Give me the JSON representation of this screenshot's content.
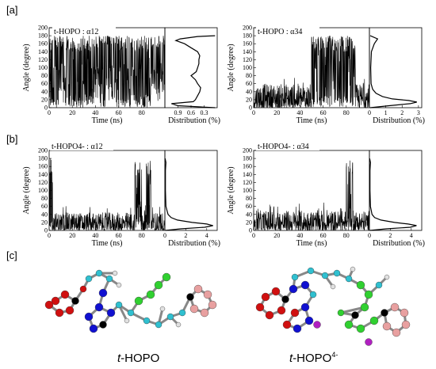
{
  "panel_letters": {
    "a": "[a]",
    "b": "[b]",
    "c": "[c]"
  },
  "axis_text": {
    "ylabel": "Angle (degree)",
    "xlabel_time": "Time (ns)",
    "xlabel_dist": "Distribution (%)"
  },
  "molecule_labels": {
    "left": "t-HOPO",
    "right": "t-HOPO4-"
  },
  "chart_data": [
    {
      "id": "a-alpha12",
      "type": "line",
      "title": "t-HOPO : α12",
      "time_xlim": [
        0,
        100
      ],
      "time_ticks": [
        0,
        20,
        40,
        60,
        80
      ],
      "ylim": [
        0,
        200
      ],
      "yticks": [
        0,
        20,
        40,
        60,
        80,
        100,
        120,
        140,
        160,
        180,
        200
      ],
      "trace_segments": [
        {
          "t0": 0,
          "t1": 8,
          "low": 0,
          "high": 180,
          "pattern": "dense"
        },
        {
          "t0": 8,
          "t1": 14,
          "low": 10,
          "high": 180,
          "pattern": "sparse"
        },
        {
          "t0": 14,
          "t1": 36,
          "low": 0,
          "high": 180,
          "pattern": "dense"
        },
        {
          "t0": 36,
          "t1": 51,
          "low": 0,
          "high": 180,
          "pattern": "sparse"
        },
        {
          "t0": 51,
          "t1": 60,
          "low": 0,
          "high": 180,
          "pattern": "sparse"
        },
        {
          "t0": 60,
          "t1": 67,
          "low": 0,
          "high": 180,
          "pattern": "dense"
        },
        {
          "t0": 67,
          "t1": 74,
          "low": 0,
          "high": 180,
          "pattern": "sparse"
        },
        {
          "t0": 74,
          "t1": 88,
          "low": 0,
          "high": 180,
          "pattern": "dense"
        },
        {
          "t0": 88,
          "t1": 100,
          "low": 10,
          "high": 180,
          "pattern": "sparse"
        }
      ],
      "dist_xlim": [
        1.2,
        0
      ],
      "dist_ticks": [
        0.3,
        0.6,
        0.9
      ],
      "dist_tick_labels": [
        "0.3",
        "0.6",
        "0.9"
      ],
      "distribution": [
        [
          0,
          0.05
        ],
        [
          5,
          0.9
        ],
        [
          10,
          1.05
        ],
        [
          15,
          0.55
        ],
        [
          20,
          0.5
        ],
        [
          30,
          0.45
        ],
        [
          40,
          0.4
        ],
        [
          50,
          0.38
        ],
        [
          60,
          0.45
        ],
        [
          70,
          0.5
        ],
        [
          80,
          0.6
        ],
        [
          90,
          0.48
        ],
        [
          100,
          0.45
        ],
        [
          110,
          0.42
        ],
        [
          120,
          0.42
        ],
        [
          130,
          0.4
        ],
        [
          140,
          0.45
        ],
        [
          150,
          0.6
        ],
        [
          160,
          0.75
        ],
        [
          168,
          0.95
        ],
        [
          172,
          0.85
        ],
        [
          178,
          0.45
        ],
        [
          180,
          0.05
        ]
      ]
    },
    {
      "id": "a-alpha34",
      "type": "line",
      "title": "t-HOPO : α34",
      "time_xlim": [
        0,
        100
      ],
      "time_ticks": [
        0,
        20,
        40,
        60,
        80
      ],
      "ylim": [
        0,
        200
      ],
      "yticks": [
        0,
        20,
        40,
        60,
        80,
        100,
        120,
        140,
        160,
        180,
        200
      ],
      "trace_segments": [
        {
          "t0": 0,
          "t1": 50,
          "low": 0,
          "high": 60,
          "pattern": "noise"
        },
        {
          "t0": 50,
          "t1": 66,
          "low": 0,
          "high": 180,
          "pattern": "dense"
        },
        {
          "t0": 66,
          "t1": 88,
          "low": 0,
          "high": 180,
          "pattern": "dense"
        },
        {
          "t0": 88,
          "t1": 100,
          "low": 0,
          "high": 60,
          "pattern": "noise"
        }
      ],
      "dist_xlim": [
        0,
        3.2
      ],
      "dist_ticks": [
        0,
        1,
        2,
        3
      ],
      "dist_tick_labels": [
        "0",
        "1",
        "2",
        "3"
      ],
      "distribution": [
        [
          0,
          0.05
        ],
        [
          5,
          1.2
        ],
        [
          10,
          2.5
        ],
        [
          14,
          2.9
        ],
        [
          18,
          2.4
        ],
        [
          22,
          1.4
        ],
        [
          28,
          0.8
        ],
        [
          36,
          0.4
        ],
        [
          46,
          0.2
        ],
        [
          60,
          0.1
        ],
        [
          100,
          0.08
        ],
        [
          140,
          0.12
        ],
        [
          160,
          0.3
        ],
        [
          172,
          0.5
        ],
        [
          180,
          0.05
        ]
      ]
    },
    {
      "id": "b-alpha12",
      "type": "line",
      "title": "t-HOPO4- : α12",
      "time_xlim": [
        0,
        100
      ],
      "time_ticks": [
        0,
        20,
        40,
        60,
        80
      ],
      "ylim": [
        0,
        200
      ],
      "yticks": [
        0,
        20,
        40,
        60,
        80,
        100,
        120,
        140,
        160,
        180,
        200
      ],
      "trace_segments": [
        {
          "t0": 0,
          "t1": 3,
          "low": 0,
          "high": 180,
          "pattern": "dense"
        },
        {
          "t0": 3,
          "t1": 74,
          "low": 0,
          "high": 45,
          "pattern": "noise"
        },
        {
          "t0": 74,
          "t1": 80,
          "low": 0,
          "high": 175,
          "pattern": "dense"
        },
        {
          "t0": 80,
          "t1": 84,
          "low": 0,
          "high": 45,
          "pattern": "noise"
        },
        {
          "t0": 84,
          "t1": 88,
          "low": 0,
          "high": 175,
          "pattern": "dense"
        },
        {
          "t0": 88,
          "t1": 100,
          "low": 0,
          "high": 45,
          "pattern": "noise"
        }
      ],
      "dist_xlim": [
        0,
        5
      ],
      "dist_ticks": [
        0,
        2,
        4
      ],
      "dist_tick_labels": [
        "0",
        "2",
        "4"
      ],
      "distribution": [
        [
          0,
          0.05
        ],
        [
          4,
          1.5
        ],
        [
          8,
          3.8
        ],
        [
          12,
          4.6
        ],
        [
          16,
          4.0
        ],
        [
          20,
          2.6
        ],
        [
          26,
          1.2
        ],
        [
          32,
          0.6
        ],
        [
          40,
          0.3
        ],
        [
          60,
          0.1
        ],
        [
          100,
          0.05
        ],
        [
          150,
          0.05
        ],
        [
          170,
          0.1
        ],
        [
          180,
          0.02
        ]
      ]
    },
    {
      "id": "b-alpha34",
      "type": "line",
      "title": "t-HOPO4- : α34",
      "time_xlim": [
        0,
        100
      ],
      "time_ticks": [
        0,
        20,
        40,
        60,
        80
      ],
      "ylim": [
        0,
        200
      ],
      "yticks": [
        0,
        20,
        40,
        60,
        80,
        100,
        120,
        140,
        160,
        180,
        200
      ],
      "trace_segments": [
        {
          "t0": 0,
          "t1": 80,
          "low": 0,
          "high": 50,
          "pattern": "noise"
        },
        {
          "t0": 80,
          "t1": 86,
          "low": 0,
          "high": 175,
          "pattern": "dense"
        },
        {
          "t0": 86,
          "t1": 100,
          "low": 0,
          "high": 50,
          "pattern": "noise"
        }
      ],
      "dist_xlim": [
        0,
        5
      ],
      "dist_ticks": [
        0,
        2,
        4
      ],
      "dist_tick_labels": [
        "0",
        "2",
        "4"
      ],
      "distribution": [
        [
          0,
          0.05
        ],
        [
          4,
          1.6
        ],
        [
          8,
          3.9
        ],
        [
          12,
          4.5
        ],
        [
          16,
          3.7
        ],
        [
          20,
          2.4
        ],
        [
          26,
          1.1
        ],
        [
          32,
          0.5
        ],
        [
          40,
          0.25
        ],
        [
          60,
          0.1
        ],
        [
          100,
          0.05
        ],
        [
          150,
          0.05
        ],
        [
          170,
          0.1
        ],
        [
          180,
          0.02
        ]
      ]
    }
  ],
  "colors": {
    "oxygen": "#d01010",
    "carbon_cyan": "#30c0d0",
    "carbon_green": "#30d030",
    "nitrogen": "#1010d0",
    "hydrogen": "#e0e0e0",
    "pink": "#e8a0a0",
    "black_atom": "#000000",
    "purple_ion": "#b020c0",
    "orange_bond": "#f08020"
  }
}
